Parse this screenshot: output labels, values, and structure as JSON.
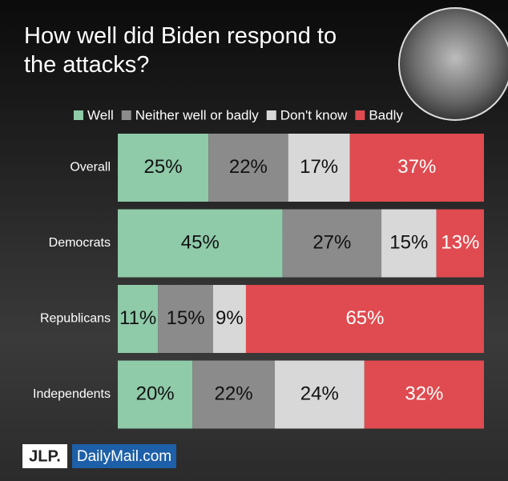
{
  "chart_data": {
    "type": "stacked_bar",
    "orientation": "horizontal",
    "title": "How well did Biden respond to the attacks?",
    "categories": [
      "Overall",
      "Democrats",
      "Republicans",
      "Independents"
    ],
    "series": [
      {
        "name": "Well",
        "color": "#8fcaa9",
        "values": [
          25,
          45,
          11,
          20
        ],
        "value_labels": [
          "25%",
          "45%",
          "11%",
          "20%"
        ]
      },
      {
        "name": "Neither well or badly",
        "color": "#8b8b8b",
        "values": [
          22,
          27,
          15,
          22
        ],
        "value_labels": [
          "22%",
          "27%",
          "15%",
          "22%"
        ]
      },
      {
        "name": "Don't know",
        "color": "#d8d8d8",
        "values": [
          17,
          15,
          9,
          24
        ],
        "value_labels": [
          "17%",
          "15%",
          "9%",
          "24%"
        ]
      },
      {
        "name": "Badly",
        "color": "#df4b50",
        "values": [
          37,
          13,
          65,
          32
        ],
        "value_labels": [
          "37%",
          "13%",
          "65%",
          "32%"
        ]
      }
    ],
    "legend": "top"
  },
  "footer": {
    "logos": [
      "JLP.",
      "DailyMail.com"
    ]
  }
}
